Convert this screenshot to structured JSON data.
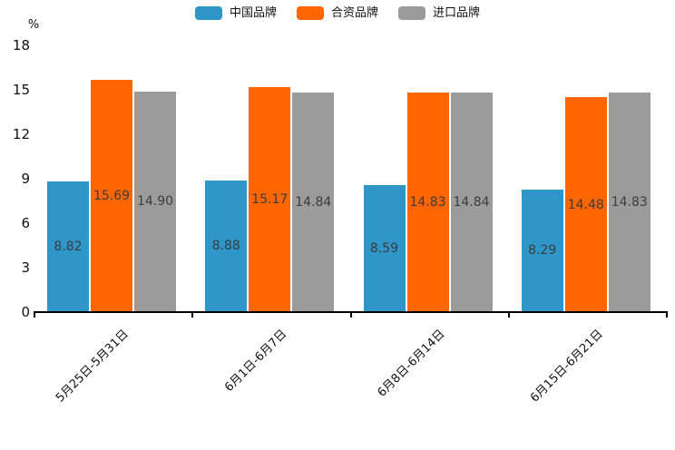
{
  "chart_data": {
    "type": "bar",
    "title": "",
    "ylabel": "%",
    "categories": [
      "5月25日-5月31日",
      "6月1日-6月7日",
      "6月8日-6月14日",
      "6月15日-6月21日"
    ],
    "series": [
      {
        "name": "中国品牌",
        "color": "#2F96CA",
        "values": [
          8.82,
          8.88,
          8.59,
          8.29
        ]
      },
      {
        "name": "合资品牌",
        "color": "#FF6600",
        "values": [
          15.69,
          15.17,
          14.83,
          14.48
        ]
      },
      {
        "name": "进口品牌",
        "color": "#9B9B9B",
        "values": [
          14.9,
          14.84,
          14.84,
          14.83
        ]
      }
    ],
    "ylim": [
      0,
      18
    ],
    "yticks": [
      0,
      3,
      6,
      9,
      12,
      15,
      18
    ],
    "legend_position": "top",
    "grid": false,
    "value_label_decimals": 2,
    "colors": {
      "axis": "#000000",
      "value_label": "#3C3C3C",
      "tick_label": "#111111"
    }
  }
}
